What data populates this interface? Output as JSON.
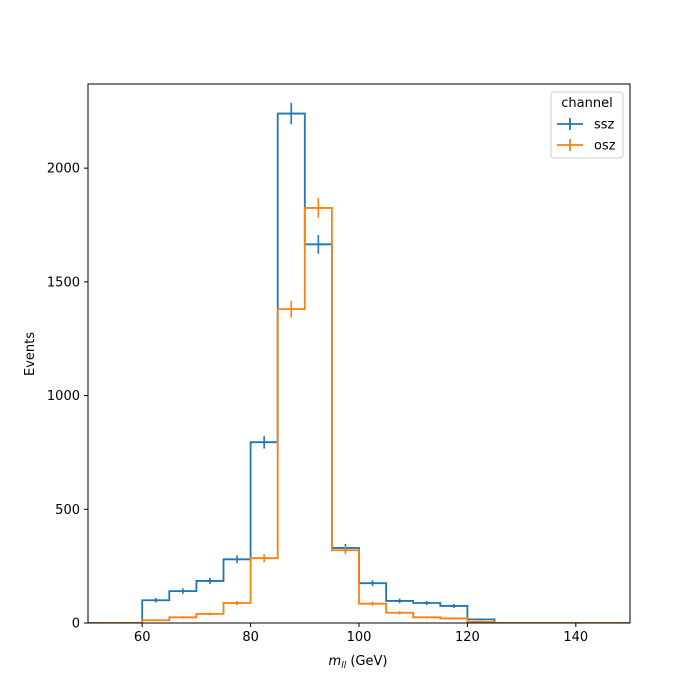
{
  "chart_data": {
    "type": "histogram",
    "xlabel_main": "m",
    "xlabel_sub": "ll",
    "xlabel_unit": " (GeV)",
    "ylabel": "Events",
    "xlim": [
      50,
      150
    ],
    "ylim": [
      0,
      2370
    ],
    "xticks": [
      60,
      80,
      100,
      120,
      140
    ],
    "yticks": [
      0,
      500,
      1000,
      1500,
      2000
    ],
    "grid": false,
    "legend_position": "top-right",
    "legend_title": "channel",
    "bin_edges": [
      60,
      65,
      70,
      75,
      80,
      85,
      90,
      95,
      100,
      105,
      110,
      115,
      120,
      125,
      130
    ],
    "series": [
      {
        "name": "ssz",
        "color": "#1f77b4",
        "values": [
          100,
          140,
          185,
          280,
          795,
          2240,
          1665,
          330,
          175,
          97,
          88,
          75,
          16,
          0
        ],
        "errors": [
          10,
          12,
          14,
          17,
          28,
          47,
          41,
          18,
          13,
          10,
          9,
          9,
          4,
          0
        ]
      },
      {
        "name": "osz",
        "color": "#ff7f0e",
        "values": [
          12,
          25,
          40,
          88,
          285,
          1380,
          1825,
          320,
          85,
          45,
          25,
          20,
          5,
          0
        ],
        "errors": [
          3,
          5,
          6,
          9,
          17,
          37,
          43,
          18,
          9,
          7,
          5,
          4,
          2,
          0
        ]
      }
    ]
  }
}
